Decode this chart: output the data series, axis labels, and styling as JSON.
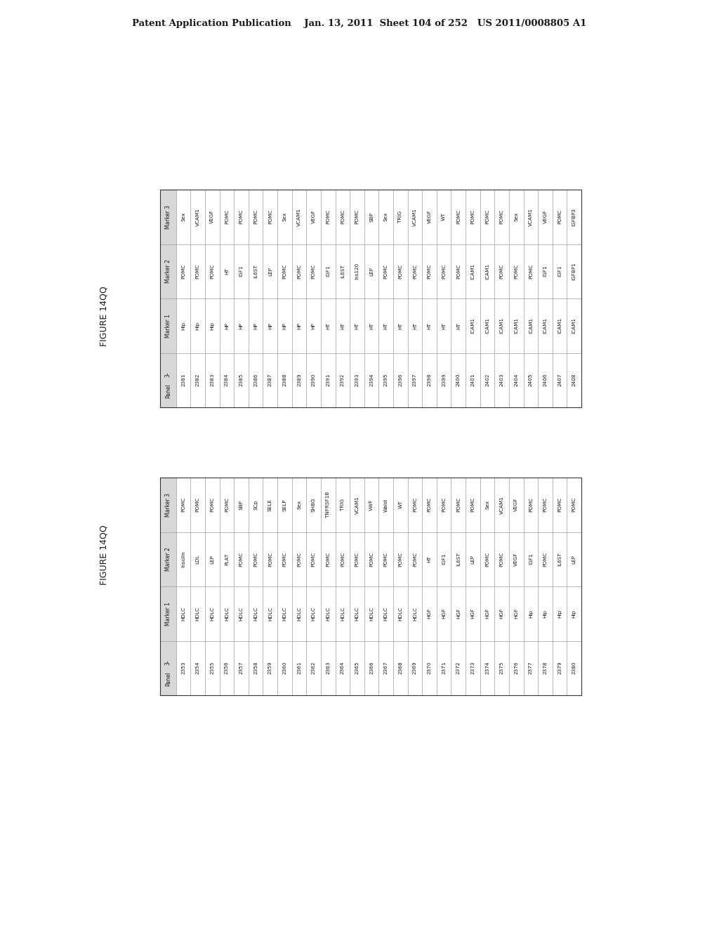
{
  "header_text": "Patent Application Publication    Jan. 13, 2011  Sheet 104 of 252   US 2011/0008805 A1",
  "figure_label": "FIGURE 14QQ",
  "table_upper": {
    "headers": [
      "3-\nPanel",
      "Marker 1",
      "Marker 2",
      "Marker 3"
    ],
    "rows": [
      [
        "2381",
        "Hip",
        "POMC",
        "Sex"
      ],
      [
        "2382",
        "Hip",
        "POMC",
        "VCAM1"
      ],
      [
        "2383",
        "Hip",
        "POMC",
        "VEGF"
      ],
      [
        "2384",
        "HP",
        "HT",
        "POMC"
      ],
      [
        "2385",
        "HP",
        "IGF1",
        "POMC"
      ],
      [
        "2386",
        "HP",
        "IL6ST",
        "POMC"
      ],
      [
        "2387",
        "HP",
        "LEP",
        "POMC"
      ],
      [
        "2388",
        "HP",
        "POMC",
        "Sex"
      ],
      [
        "2389",
        "HP",
        "POMC",
        "VCAM1"
      ],
      [
        "2390",
        "HP",
        "POMC",
        "VEGF"
      ],
      [
        "2391",
        "HT",
        "IGF1",
        "POMC"
      ],
      [
        "2392",
        "HT",
        "IL6ST",
        "POMC"
      ],
      [
        "2393",
        "HT",
        "Ins120",
        "POMC"
      ],
      [
        "2394",
        "HT",
        "LEP",
        "SBP"
      ],
      [
        "2395",
        "HT",
        "POMC",
        "Sex"
      ],
      [
        "2396",
        "HT",
        "POMC",
        "TRIG"
      ],
      [
        "2397",
        "HT",
        "POMC",
        "VCAM1"
      ],
      [
        "2398",
        "HT",
        "POMC",
        "VEGF"
      ],
      [
        "2399",
        "HT",
        "POMC",
        "WT"
      ],
      [
        "2400",
        "HT",
        "POMC",
        "POMC"
      ],
      [
        "2401",
        "ICAM1",
        "ICAM1",
        "POMC"
      ],
      [
        "2402",
        "ICAM1",
        "ICAM1",
        "POMC"
      ],
      [
        "2403",
        "ICAM1",
        "POMC",
        "POMC"
      ],
      [
        "2404",
        "ICAM1",
        "POMC",
        "Sex"
      ],
      [
        "2405",
        "ICAM1",
        "POMC",
        "VCAM1"
      ],
      [
        "2406",
        "ICAM1",
        "IGF1",
        "VEGF"
      ],
      [
        "2407",
        "ICAM1",
        "IGF1",
        "POMC"
      ],
      [
        "2408",
        "ICAM1",
        "IGFBP1",
        "IGFBP3"
      ]
    ]
  },
  "table_lower": {
    "headers": [
      "3-\nPanel",
      "Marker 1",
      "Marker 2",
      "Marker 3"
    ],
    "rows": [
      [
        "2353",
        "HDLC",
        "Insulin",
        "POMC"
      ],
      [
        "2354",
        "HDLC",
        "LDL",
        "POMC"
      ],
      [
        "2355",
        "HDLC",
        "LEP",
        "POMC"
      ],
      [
        "2356",
        "HDLC",
        "PLAT",
        "POMC"
      ],
      [
        "2357",
        "HDLC",
        "POMC",
        "SBP"
      ],
      [
        "2358",
        "HDLC",
        "POMC",
        "SCp"
      ],
      [
        "2359",
        "HDLC",
        "POMC",
        "SELE"
      ],
      [
        "2360",
        "HDLC",
        "POMC",
        "SELP"
      ],
      [
        "2361",
        "HDLC",
        "POMC",
        "Sex"
      ],
      [
        "2362",
        "HDLC",
        "POMC",
        "SHBG"
      ],
      [
        "2363",
        "HDLC",
        "POMC",
        "TNFRSF1B"
      ],
      [
        "2364",
        "HDLC",
        "POMC",
        "TRIG"
      ],
      [
        "2365",
        "HDLC",
        "POMC",
        "VCAM1"
      ],
      [
        "2366",
        "HDLC",
        "POMC",
        "VWF"
      ],
      [
        "2367",
        "HDLC",
        "POMC",
        "Waist"
      ],
      [
        "2368",
        "HDLC",
        "POMC",
        "WT"
      ],
      [
        "2369",
        "HDLC",
        "POMC",
        "POMC"
      ],
      [
        "2370",
        "HGF",
        "HT",
        "POMC"
      ],
      [
        "2371",
        "HGF",
        "IGF1",
        "POMC"
      ],
      [
        "2372",
        "HGF",
        "IL6ST",
        "POMC"
      ],
      [
        "2373",
        "HGF",
        "LEP",
        "POMC"
      ],
      [
        "2374",
        "HGF",
        "POMC",
        "Sex"
      ],
      [
        "2375",
        "HGF",
        "POMC",
        "VCAM1"
      ],
      [
        "2376",
        "HGF",
        "VEGF",
        "VEGF"
      ],
      [
        "2377",
        "Hip",
        "IGF1",
        "POMC"
      ],
      [
        "2378",
        "Hip",
        "POMC",
        "POMC"
      ],
      [
        "2379",
        "Hip",
        "IL6ST",
        "POMC"
      ],
      [
        "2380",
        "Hip",
        "LEP",
        "POMC"
      ]
    ]
  },
  "bg_color": "#ffffff",
  "text_color": "#1a1a1a",
  "line_color": "#999999",
  "header_bg": "#d8d8d8"
}
